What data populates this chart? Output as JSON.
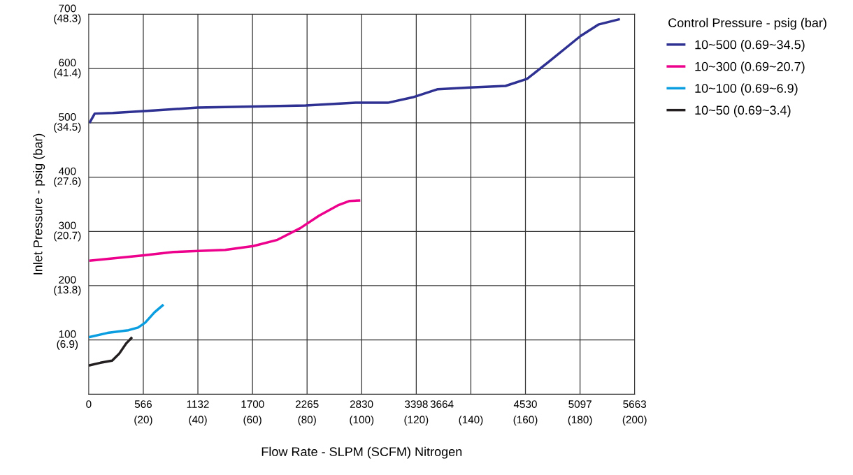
{
  "chart_data": {
    "type": "line",
    "xlabel": "Flow Rate - SLPM (SCFM) Nitrogen",
    "ylabel": "Inlet Pressure - psig (bar)",
    "legend_title": "Control Pressure - psig (bar)",
    "legend": "top right",
    "grid": true,
    "marker": "none",
    "line_style": "solid",
    "xlim": [
      0,
      200
    ],
    "ylim": [
      0,
      700
    ],
    "xticks": [
      {
        "value": 20,
        "label": "(20)"
      },
      {
        "value": 40,
        "label": "(40)"
      },
      {
        "value": 60,
        "label": "(60)"
      },
      {
        "value": 80,
        "label": "(80)"
      },
      {
        "value": 100,
        "label": "(100)"
      },
      {
        "value": 120,
        "label": "(120)"
      },
      {
        "value": 140,
        "label": "(140)"
      },
      {
        "value": 160,
        "label": "(160)"
      },
      {
        "value": 180,
        "label": "(180)"
      },
      {
        "value": 200,
        "label": "(200)"
      }
    ],
    "x2lim": [
      0,
      5663
    ],
    "x2ticks": [
      0,
      566,
      1132,
      1700,
      2265,
      2830,
      3398,
      3664,
      4530,
      5097,
      5663
    ],
    "yticks": [
      100,
      200,
      300,
      400,
      500,
      600,
      700
    ],
    "y2lim": [
      0,
      48.3
    ],
    "y2ticks": [
      {
        "value": 6.9,
        "label": "(6.9)"
      },
      {
        "value": 13.8,
        "label": "(13.8)"
      },
      {
        "value": 20.7,
        "label": "(20.7)"
      },
      {
        "value": 27.6,
        "label": "(27.6)"
      },
      {
        "value": 34.5,
        "label": "(34.5)"
      },
      {
        "value": 41.4,
        "label": "(41.4)"
      },
      {
        "value": 48.3,
        "label": "(48.3)"
      }
    ],
    "series": [
      {
        "name": "10~500 (0.69~34.5)",
        "color": "#2e3192",
        "x": [
          0.3,
          2.2,
          8.8,
          24.5,
          40,
          60,
          79.5,
          97.8,
          109.6,
          118.7,
          127.9,
          139.7,
          152.7,
          160.6,
          168.4,
          180.2,
          186.7,
          194.6
        ],
        "values": [
          500,
          517,
          518,
          523,
          528,
          530,
          532,
          537,
          537,
          547,
          562,
          565,
          568,
          581,
          612,
          660,
          681,
          691
        ]
      },
      {
        "name": "10~300 (0.69~20.7)",
        "color": "#ec008c",
        "x": [
          0.2,
          20.2,
          31,
          40.2,
          50,
          60.3,
          68.9,
          77.5,
          84.4,
          91.3,
          95.6,
          99.5
        ],
        "values": [
          246,
          256,
          262,
          264,
          266,
          273,
          284,
          306,
          329,
          348,
          356,
          357
        ]
      },
      {
        "name": "10~100 (0.69~6.9)",
        "color": "#0a9ee0",
        "x": [
          0,
          6.9,
          14.6,
          18.1,
          20.7,
          24.1,
          27.4
        ],
        "values": [
          105,
          113,
          118,
          123,
          132,
          151,
          165
        ]
      },
      {
        "name": "10~50 (0.69~3.4)",
        "color": "#231f20",
        "x": [
          0,
          4.3,
          8.6,
          11.2,
          13.8,
          15.9
        ],
        "values": [
          53,
          58,
          62,
          75,
          94,
          105
        ]
      }
    ]
  }
}
